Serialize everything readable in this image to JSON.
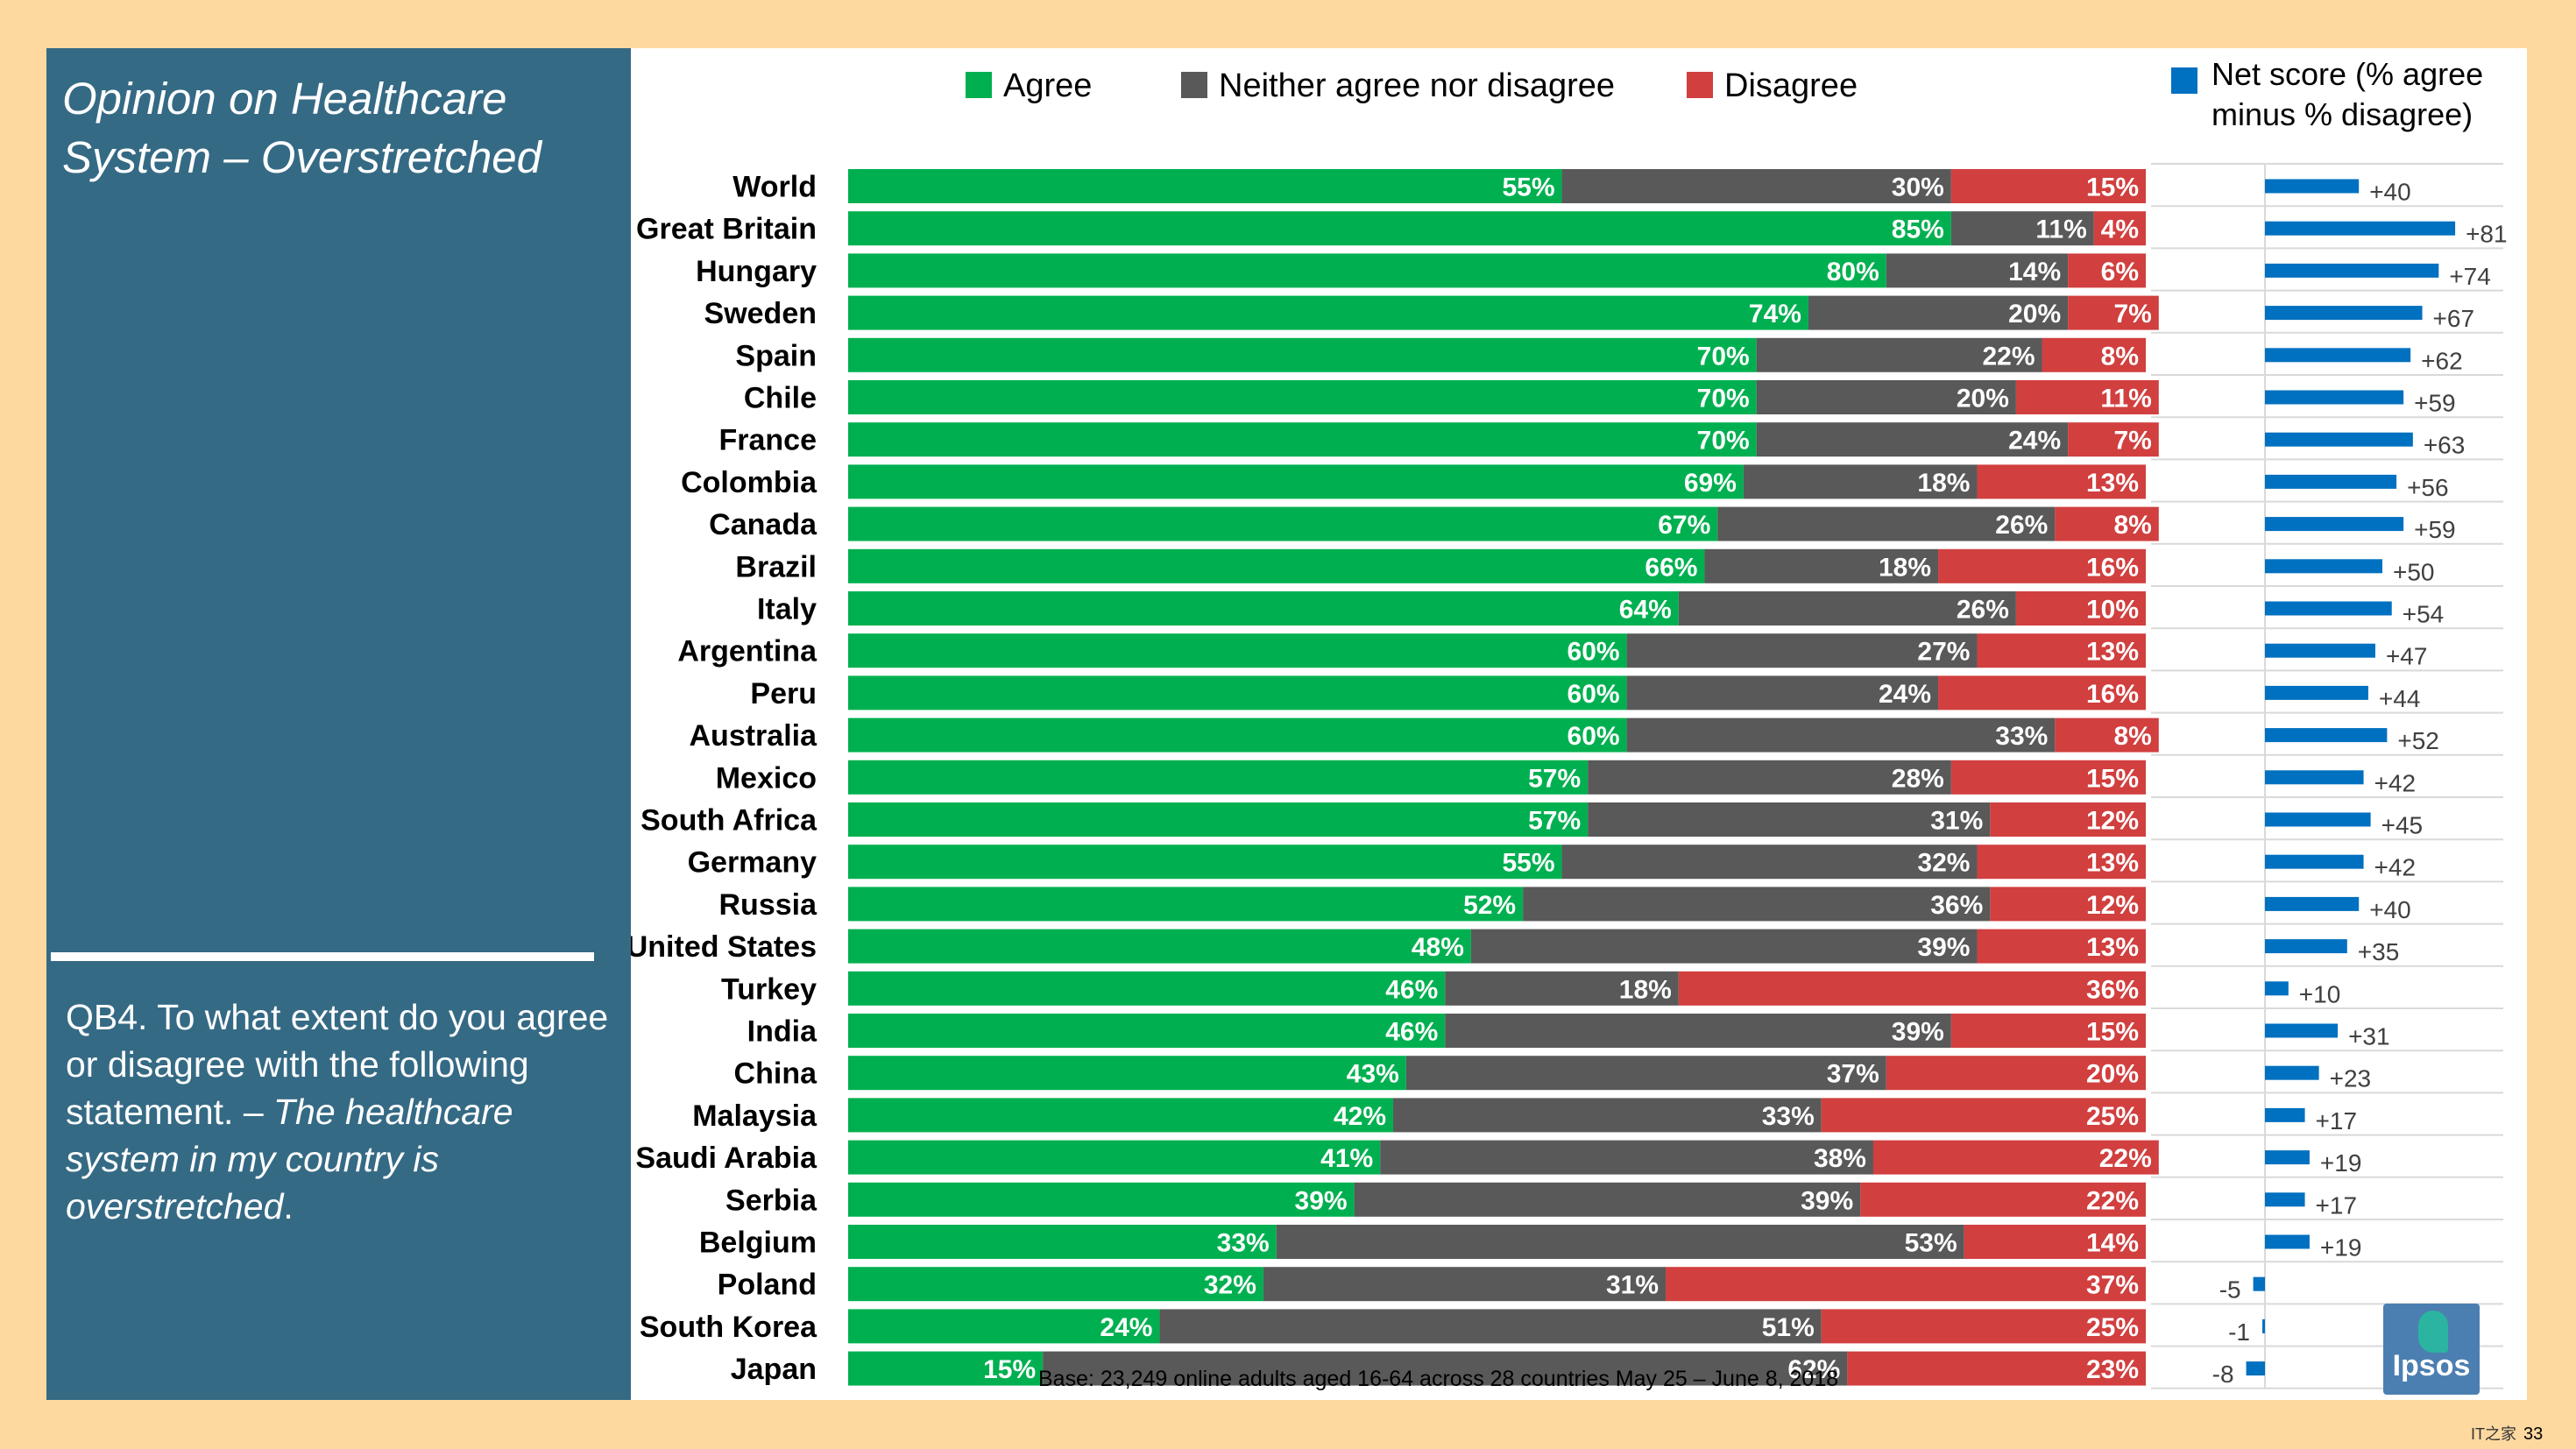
{
  "side_title_lines": [
    "Opinion on Healthcare",
    "System – Overstretched"
  ],
  "question": {
    "plain": "QB4. To what extent do you agree or disagree with the following statement. – ",
    "italic": "The healthcare system in my country is overstretched",
    "end": "."
  },
  "net_score_title_lines": [
    "Net score (% agree",
    "minus % disagree)"
  ],
  "base_note": "Base: 23,249 online adults aged 16-64 across 28 countries  May 25 – June 8, 2018",
  "logo_text": "Ipsos",
  "page_number": "33",
  "watermark": "IT之家",
  "colors": {
    "agree": "#00B050",
    "neither": "#595959",
    "disagree": "#D13F3F",
    "net": "#0070C0",
    "panel": "#356A85",
    "background": "#FDD9A0"
  },
  "chart_data": {
    "type": "bar",
    "stacked": true,
    "orientation": "horizontal",
    "legend_position": "top",
    "categories": [
      "World",
      "Great Britain",
      "Hungary",
      "Sweden",
      "Spain",
      "Chile",
      "France",
      "Colombia",
      "Canada",
      "Brazil",
      "Italy",
      "Argentina",
      "Peru",
      "Australia",
      "Mexico",
      "South Africa",
      "Germany",
      "Russia",
      "United States",
      "Turkey",
      "India",
      "China",
      "Malaysia",
      "Saudi Arabia",
      "Serbia",
      "Belgium",
      "Poland",
      "South Korea",
      "Japan"
    ],
    "series": [
      {
        "name": "Agree",
        "color": "#00B050",
        "values": [
          55,
          85,
          80,
          74,
          70,
          70,
          70,
          69,
          67,
          66,
          64,
          60,
          60,
          60,
          57,
          57,
          55,
          52,
          48,
          46,
          46,
          43,
          42,
          41,
          39,
          33,
          32,
          24,
          15
        ]
      },
      {
        "name": "Neither agree nor disagree",
        "color": "#595959",
        "values": [
          30,
          11,
          14,
          20,
          22,
          20,
          24,
          18,
          26,
          18,
          26,
          27,
          24,
          33,
          28,
          31,
          32,
          36,
          39,
          18,
          39,
          37,
          33,
          38,
          39,
          53,
          31,
          51,
          62
        ]
      },
      {
        "name": "Disagree",
        "color": "#D13F3F",
        "values": [
          15,
          4,
          6,
          7,
          8,
          11,
          7,
          13,
          8,
          16,
          10,
          13,
          16,
          8,
          15,
          12,
          13,
          12,
          13,
          36,
          15,
          20,
          25,
          22,
          22,
          14,
          37,
          25,
          23
        ]
      }
    ],
    "net_series": {
      "name": "Net score (% agree minus % disagree)",
      "color": "#0070C0",
      "labels": [
        "+40",
        "+81",
        "+74",
        "+67",
        "+62",
        "+59",
        "+63",
        "+56",
        "+59",
        "+50",
        "+54",
        "+47",
        "+44",
        "+52",
        "+42",
        "+45",
        "+42",
        "+40",
        "+35",
        "+10",
        "+31",
        "+23",
        "+17",
        "+19",
        "+17",
        "+19",
        "-5",
        "-1",
        "-8"
      ],
      "values": [
        40,
        81,
        74,
        67,
        62,
        59,
        63,
        56,
        59,
        50,
        54,
        47,
        44,
        52,
        42,
        45,
        42,
        40,
        35,
        10,
        31,
        23,
        17,
        19,
        17,
        19,
        -5,
        -1,
        -8
      ]
    },
    "xlim": [
      0,
      100
    ]
  }
}
